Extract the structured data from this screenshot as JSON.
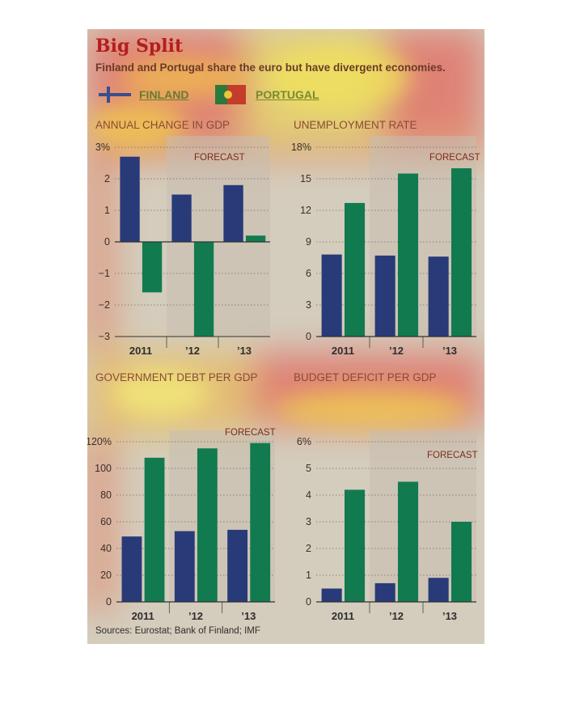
{
  "title": "Big Split",
  "subtitle": "Finland and Portugal share the euro but have divergent economies.",
  "legend": {
    "finland": "FINLAND",
    "portugal": "PORTUGAL"
  },
  "colors": {
    "finland": "#283a78",
    "portugal": "#127a4f",
    "forecast_shade": "#c7beb0",
    "text_dark": "#2e2e2e",
    "forecast_text": "#7a2d1c"
  },
  "forecast_label": "FORECAST",
  "source": "Sources: Eurostat; Bank of Finland; IMF",
  "chart_data": [
    {
      "type": "bar",
      "title": "ANNUAL CHANGE IN GDP",
      "categories": [
        "2011",
        "’12",
        "’13"
      ],
      "series": [
        {
          "name": "FINLAND",
          "values": [
            2.7,
            1.5,
            1.8
          ]
        },
        {
          "name": "PORTUGAL",
          "values": [
            -1.6,
            -3.0,
            0.2
          ]
        }
      ],
      "ylim": [
        -3,
        3
      ],
      "yticks": [
        "3%",
        "2",
        "1",
        "0",
        "−1",
        "−2",
        "−3"
      ],
      "forecast_from": 1
    },
    {
      "type": "bar",
      "title": "UNEMPLOYMENT RATE",
      "categories": [
        "2011",
        "’12",
        "’13"
      ],
      "series": [
        {
          "name": "FINLAND",
          "values": [
            7.8,
            7.7,
            7.6
          ]
        },
        {
          "name": "PORTUGAL",
          "values": [
            12.7,
            15.5,
            16.0
          ]
        }
      ],
      "ylim": [
        0,
        18
      ],
      "yticks": [
        "18%",
        "15",
        "12",
        "9",
        "6",
        "3",
        "0"
      ],
      "forecast_from": 1
    },
    {
      "type": "bar",
      "title": "GOVERNMENT DEBT PER GDP",
      "categories": [
        "2011",
        "’12",
        "’13"
      ],
      "series": [
        {
          "name": "FINLAND",
          "values": [
            49,
            53,
            54
          ]
        },
        {
          "name": "PORTUGAL",
          "values": [
            108,
            115,
            119
          ]
        }
      ],
      "ylim": [
        0,
        120
      ],
      "yticks": [
        "120%",
        "100",
        "80",
        "60",
        "40",
        "20",
        "0"
      ],
      "forecast_from": 1
    },
    {
      "type": "bar",
      "title": "BUDGET DEFICIT PER GDP",
      "categories": [
        "2011",
        "’12",
        "’13"
      ],
      "series": [
        {
          "name": "FINLAND",
          "values": [
            0.5,
            0.7,
            0.9
          ]
        },
        {
          "name": "PORTUGAL",
          "values": [
            4.2,
            4.5,
            3.0
          ]
        }
      ],
      "ylim": [
        0,
        6
      ],
      "yticks": [
        "6%",
        "5",
        "4",
        "3",
        "2",
        "1",
        "0"
      ],
      "forecast_from": 1
    }
  ]
}
